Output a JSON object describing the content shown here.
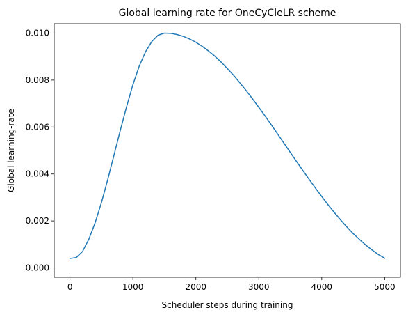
{
  "chart_data": {
    "type": "line",
    "title": "Global learning rate for OneCyCleLR scheme",
    "xlabel": "Scheduler steps during training",
    "ylabel": "Global learning-rate",
    "xlim": [
      -250,
      5250
    ],
    "ylim": [
      -0.0004,
      0.0104
    ],
    "x_ticks": [
      0,
      1000,
      2000,
      3000,
      4000,
      5000
    ],
    "x_tick_labels": [
      "0",
      "1000",
      "2000",
      "3000",
      "4000",
      "5000"
    ],
    "y_ticks": [
      0.0,
      0.002,
      0.004,
      0.006,
      0.008,
      0.01
    ],
    "y_tick_labels": [
      "0.000",
      "0.002",
      "0.004",
      "0.006",
      "0.008",
      "0.010"
    ],
    "grid": false,
    "line_color": "#1f77b4",
    "series": [
      {
        "x": [
          0,
          100,
          200,
          300,
          400,
          500,
          600,
          700,
          800,
          900,
          1000,
          1100,
          1200,
          1300,
          1400,
          1500,
          1600,
          1700,
          1800,
          1900,
          2000,
          2100,
          2200,
          2300,
          2400,
          2500,
          2600,
          2700,
          2800,
          2900,
          3000,
          3100,
          3200,
          3300,
          3400,
          3500,
          3600,
          3700,
          3800,
          3900,
          4000,
          4100,
          4200,
          4300,
          4400,
          4500,
          4600,
          4700,
          4800,
          4900,
          5000
        ],
        "values": [
          0.0004,
          0.00044,
          0.0007,
          0.00122,
          0.00192,
          0.00278,
          0.00376,
          0.00481,
          0.00586,
          0.00687,
          0.0078,
          0.00859,
          0.0092,
          0.00964,
          0.00991,
          0.01,
          0.00999,
          0.00994,
          0.00986,
          0.00975,
          0.00961,
          0.00944,
          0.00924,
          0.00902,
          0.00877,
          0.00849,
          0.0082,
          0.00788,
          0.00755,
          0.0072,
          0.00684,
          0.00647,
          0.00609,
          0.0057,
          0.00531,
          0.00492,
          0.00453,
          0.00415,
          0.00377,
          0.0034,
          0.00304,
          0.00269,
          0.00236,
          0.00204,
          0.00174,
          0.00146,
          0.00121,
          0.00097,
          0.00076,
          0.00057,
          0.00041
        ]
      }
    ]
  }
}
